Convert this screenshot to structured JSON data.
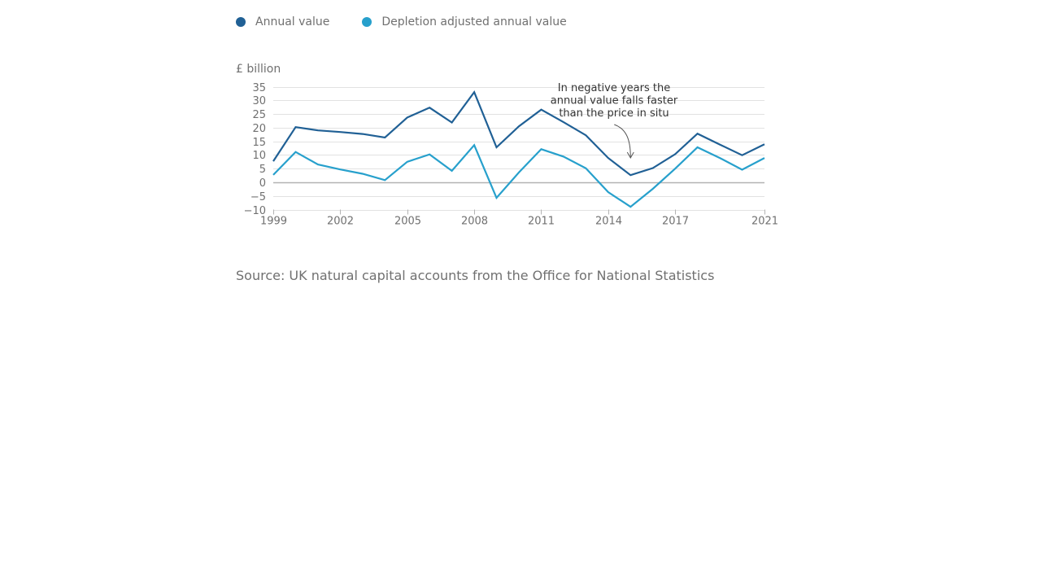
{
  "chart_data": {
    "type": "line",
    "ylabel": "£ billion",
    "ylim": [
      -10,
      35
    ],
    "yticks": [
      35,
      30,
      25,
      20,
      15,
      10,
      5,
      0,
      -5,
      -10
    ],
    "ytick_labels": [
      "35",
      "30",
      "25",
      "20",
      "15",
      "10",
      "5",
      "0",
      "−5",
      "−10"
    ],
    "xlim": [
      1999,
      2021
    ],
    "xticks": [
      1999,
      2002,
      2005,
      2008,
      2011,
      2014,
      2017,
      2021
    ],
    "xtick_labels": [
      "1999",
      "2002",
      "2005",
      "2008",
      "2011",
      "2014",
      "2017",
      "2021"
    ],
    "grid": true,
    "legend_position": "top-left",
    "x": [
      1999,
      2000,
      2001,
      2002,
      2003,
      2004,
      2005,
      2006,
      2007,
      2008,
      2009,
      2010,
      2011,
      2012,
      2013,
      2014,
      2015,
      2016,
      2017,
      2018,
      2019,
      2020,
      2021
    ],
    "series": [
      {
        "name": "Annual value",
        "color": "#206095",
        "values": [
          7.7,
          20.2,
          19.0,
          18.4,
          17.7,
          16.4,
          23.7,
          27.3,
          21.9,
          33.0,
          12.8,
          20.5,
          26.6,
          22.0,
          17.2,
          8.9,
          2.6,
          5.2,
          10.3,
          17.8,
          13.8,
          9.9,
          13.9
        ]
      },
      {
        "name": "Depletion adjusted annual value",
        "color": "#27a0cc",
        "values": [
          2.7,
          11.1,
          6.5,
          4.7,
          3.1,
          0.8,
          7.5,
          10.2,
          4.2,
          13.6,
          -5.7,
          3.6,
          12.1,
          9.4,
          5.1,
          -3.6,
          -9.0,
          -2.4,
          5.0,
          12.8,
          8.9,
          4.6,
          8.9
        ]
      }
    ],
    "annotations": [
      {
        "text_lines": [
          "In negative years the",
          "annual value falls faster",
          "than the price in situ"
        ],
        "points_to_x": 2015
      }
    ]
  },
  "source_text": "Source: UK natural capital accounts from the Office for National Statistics"
}
